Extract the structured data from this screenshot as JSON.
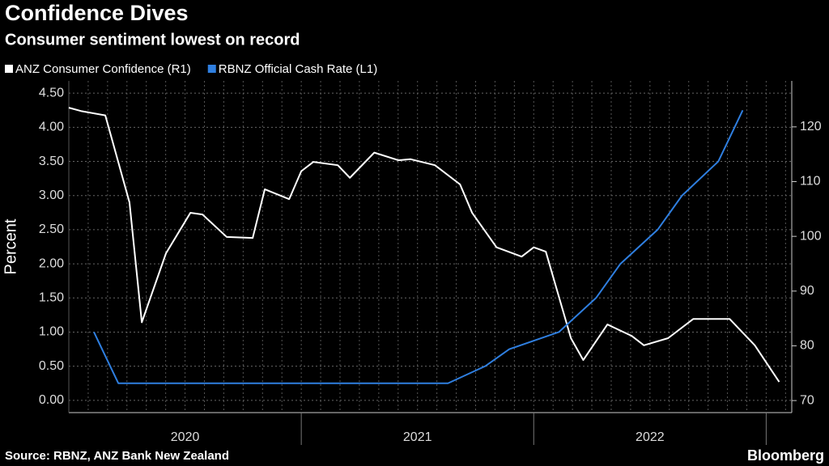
{
  "chart_data": {
    "type": "line",
    "title": "Confidence Dives",
    "subtitle": "Consumer sentiment lowest on record",
    "ylabel": "Percent",
    "source": "Source: RBNZ, ANZ Bank New Zealand",
    "brand": "Bloomberg",
    "xlim": [
      2020,
      2023.11
    ],
    "xticks": [
      {
        "value": 2020.5,
        "label": "2020"
      },
      {
        "value": 2021.5,
        "label": "2021"
      },
      {
        "value": 2022.5,
        "label": "2022"
      }
    ],
    "year_boundaries": [
      2021,
      2022,
      2023
    ],
    "ylim": [
      -0.18,
      4.68
    ],
    "yticks": [
      {
        "value": 0,
        "label": "0.00"
      },
      {
        "value": 0.5,
        "label": "0.50"
      },
      {
        "value": 1,
        "label": "1.00"
      },
      {
        "value": 1.5,
        "label": "1.50"
      },
      {
        "value": 2,
        "label": "2.00"
      },
      {
        "value": 2.5,
        "label": "2.50"
      },
      {
        "value": 3,
        "label": "3.00"
      },
      {
        "value": 3.5,
        "label": "3.50"
      },
      {
        "value": 4,
        "label": "4.00"
      },
      {
        "value": 4.5,
        "label": "4.50"
      }
    ],
    "y2lim": [
      67.8,
      128.4
    ],
    "y2ticks": [
      70,
      80,
      90,
      100,
      110,
      120
    ],
    "grid": true,
    "series": [
      {
        "name": "ANZ Consumer Confidence (R1)",
        "color": "#ffffff",
        "axis": "y2",
        "x": [
          2020.0,
          2020.052,
          2020.157,
          2020.261,
          2020.314,
          2020.418,
          2020.523,
          2020.575,
          2020.679,
          2020.791,
          2020.843,
          2020.948,
          2021.0,
          2021.052,
          2021.157,
          2021.209,
          2021.314,
          2021.418,
          2021.47,
          2021.575,
          2021.683,
          2021.735,
          2021.84,
          2021.948,
          2022.0,
          2022.052,
          2022.16,
          2022.213,
          2022.317,
          2022.422,
          2022.474,
          2022.578,
          2022.686,
          2022.843,
          2022.951,
          2023.056
        ],
        "values": [
          123.5,
          122.9,
          122.1,
          106.2,
          84.3,
          96.9,
          104.3,
          104.0,
          99.9,
          99.7,
          108.6,
          106.8,
          111.9,
          113.6,
          113.0,
          110.7,
          115.3,
          113.9,
          114.1,
          113.0,
          109.5,
          104.3,
          98.0,
          96.3,
          98.0,
          97.2,
          81.4,
          77.4,
          83.9,
          81.8,
          80.1,
          81.4,
          84.9,
          84.9,
          80.1,
          73.4
        ]
      },
      {
        "name": "RBNZ Official Cash Rate (L1)",
        "color": "#2f7fe0",
        "axis": "y",
        "x": [
          2020.108,
          2020.213,
          2021.631,
          2021.791,
          2021.895,
          2022.108,
          2022.268,
          2022.373,
          2022.533,
          2022.638,
          2022.794,
          2022.899
        ],
        "values": [
          1.0,
          0.25,
          0.25,
          0.5,
          0.75,
          1.0,
          1.5,
          2.0,
          2.5,
          3.0,
          3.5,
          4.25
        ]
      }
    ]
  }
}
